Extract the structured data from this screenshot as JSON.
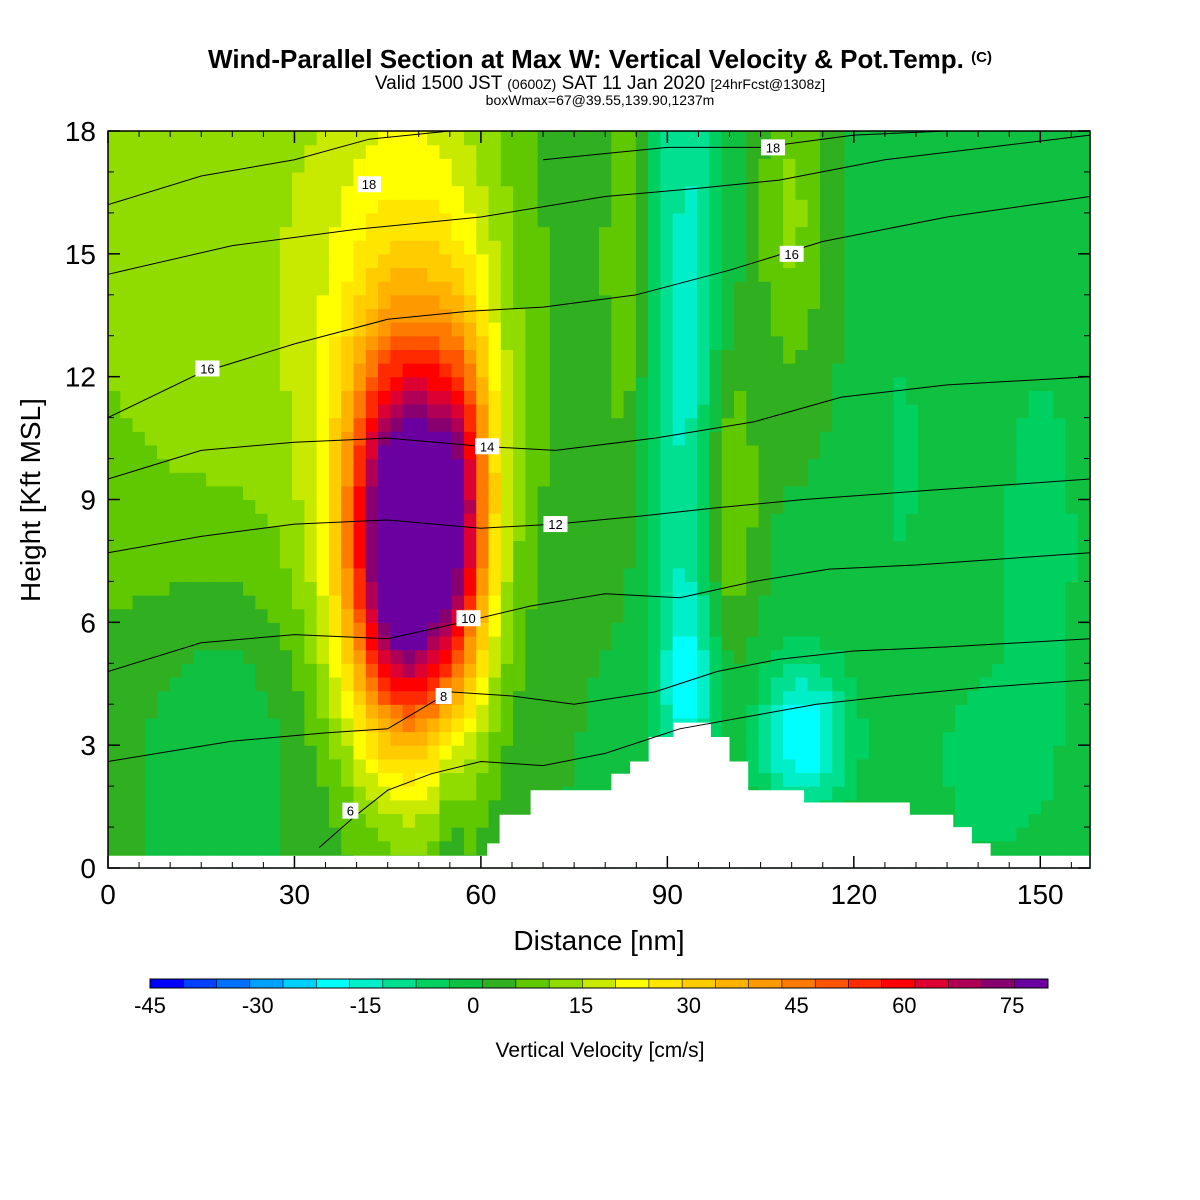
{
  "header": {
    "title": "Wind-Parallel Section at Max W: Vertical Velocity & Pot.Temp.",
    "copyright": "(C)",
    "valid_a": "Valid 1500 JST",
    "valid_zulu": "(0600Z)",
    "valid_b": "SAT 11 Jan 2020",
    "forecast": "[24hrFcst@1308z]",
    "box_info": "boxWmax=67@39.55,139.90,1237m"
  },
  "chart_data": {
    "type": "heatmap",
    "xlabel": "Distance [nm]",
    "ylabel": "Height [Kft MSL]",
    "xlim": [
      0,
      158
    ],
    "ylim": [
      0,
      18
    ],
    "x_ticks": [
      "0",
      "30",
      "60",
      "90",
      "120",
      "150"
    ],
    "y_ticks": [
      "0",
      "3",
      "6",
      "9",
      "12",
      "15",
      "18"
    ],
    "grid": false,
    "colorbar": {
      "label": "Vertical Velocity [cm/s]",
      "range": [
        -45,
        80
      ],
      "step": 5,
      "tick_labels": [
        "-45",
        "-30",
        "-15",
        "0",
        "15",
        "30",
        "45",
        "60",
        "75"
      ],
      "colors": [
        "#0000ff",
        "#0040ff",
        "#0070ff",
        "#00a0ff",
        "#00d0ff",
        "#00ffff",
        "#00eec8",
        "#00e090",
        "#00d060",
        "#10c040",
        "#30b020",
        "#60c800",
        "#90dc00",
        "#c8ea00",
        "#ffff00",
        "#ffe600",
        "#ffcc00",
        "#ffb300",
        "#ff9900",
        "#ff7a00",
        "#ff5500",
        "#ff2a00",
        "#ff0000",
        "#dd0033",
        "#b00055",
        "#880070",
        "#6a00a0"
      ]
    },
    "terrain_kft": [
      [
        0,
        0.3
      ],
      [
        61,
        0.3
      ],
      [
        61,
        0.6
      ],
      [
        63,
        0.6
      ],
      [
        63,
        1.3
      ],
      [
        68,
        1.3
      ],
      [
        68,
        1.9
      ],
      [
        81,
        1.9
      ],
      [
        81,
        2.3
      ],
      [
        84,
        2.3
      ],
      [
        84,
        2.6
      ],
      [
        87,
        2.6
      ],
      [
        87,
        3.2
      ],
      [
        91,
        3.2
      ],
      [
        91,
        3.55
      ],
      [
        97,
        3.55
      ],
      [
        97,
        3.2
      ],
      [
        100,
        3.2
      ],
      [
        100,
        2.6
      ],
      [
        103,
        2.6
      ],
      [
        103,
        1.9
      ],
      [
        112,
        1.9
      ],
      [
        112,
        1.6
      ],
      [
        129,
        1.6
      ],
      [
        129,
        1.3
      ],
      [
        136,
        1.3
      ],
      [
        136,
        1.0
      ],
      [
        139,
        1.0
      ],
      [
        139,
        0.6
      ],
      [
        142,
        0.6
      ],
      [
        142,
        0.3
      ],
      [
        158,
        0.3
      ]
    ],
    "w_features": [
      {
        "x": 48,
        "z": 7.8,
        "sx": 6.5,
        "sz": 3.2,
        "w": 88
      },
      {
        "x": 50,
        "z": 12.5,
        "sx": 12,
        "sz": 6.5,
        "w": 22
      },
      {
        "x": 57,
        "z": 9,
        "sx": 3.5,
        "sz": 3.0,
        "w": 32
      },
      {
        "x": 15,
        "z": 15,
        "sx": 25,
        "sz": 8,
        "w": 14
      },
      {
        "x": 18,
        "z": 3.5,
        "sx": 9,
        "sz": 2.5,
        "w": -8
      },
      {
        "x": 93,
        "z": 13,
        "sx": 4,
        "sz": 8,
        "w": -16
      },
      {
        "x": 112,
        "z": 3.2,
        "sx": 5,
        "sz": 1.3,
        "w": -24
      },
      {
        "x": 93,
        "z": 4.5,
        "sx": 3,
        "sz": 1.5,
        "w": -14
      },
      {
        "x": 100,
        "z": 9,
        "sx": 3,
        "sz": 2.5,
        "w": 14
      },
      {
        "x": 110,
        "z": 16,
        "sx": 4,
        "sz": 3,
        "w": 12
      },
      {
        "x": 83,
        "z": 15,
        "sx": 2.5,
        "sz": 4,
        "w": 10
      },
      {
        "x": 150,
        "z": 8,
        "sx": 4,
        "sz": 3,
        "w": -9
      },
      {
        "x": 142,
        "z": 2.5,
        "sx": 8,
        "sz": 2,
        "w": -6
      },
      {
        "x": 128,
        "z": 10,
        "sx": 3,
        "sz": 3,
        "w": -5
      },
      {
        "x": 55,
        "z": 1.5,
        "sx": 1.2,
        "sz": 1.5,
        "w": -6
      }
    ],
    "w_background": 4,
    "theta_contours": [
      {
        "label": "6",
        "pts": [
          [
            34,
            0.5
          ],
          [
            40,
            1.3
          ],
          [
            45,
            1.9
          ],
          [
            52,
            2.3
          ],
          [
            60,
            2.6
          ],
          [
            70,
            2.5
          ],
          [
            80,
            2.8
          ],
          [
            92,
            3.4
          ],
          [
            103,
            3.7
          ],
          [
            114,
            4.0
          ],
          [
            126,
            4.2
          ],
          [
            140,
            4.4
          ],
          [
            158,
            4.6
          ]
        ],
        "label_at": [
          39,
          1.4
        ]
      },
      {
        "label": "8",
        "pts": [
          [
            0,
            2.6
          ],
          [
            20,
            3.1
          ],
          [
            35,
            3.3
          ],
          [
            45,
            3.4
          ],
          [
            55,
            4.3
          ],
          [
            65,
            4.2
          ],
          [
            75,
            4.0
          ],
          [
            88,
            4.3
          ],
          [
            98,
            4.8
          ],
          [
            108,
            5.1
          ],
          [
            120,
            5.3
          ],
          [
            135,
            5.4
          ],
          [
            158,
            5.6
          ]
        ],
        "label_at": [
          54,
          4.2
        ]
      },
      {
        "label": "10",
        "pts": [
          [
            0,
            4.8
          ],
          [
            15,
            5.5
          ],
          [
            30,
            5.7
          ],
          [
            45,
            5.6
          ],
          [
            57,
            6.0
          ],
          [
            68,
            6.4
          ],
          [
            80,
            6.7
          ],
          [
            92,
            6.6
          ],
          [
            104,
            7.0
          ],
          [
            116,
            7.3
          ],
          [
            130,
            7.4
          ],
          [
            158,
            7.7
          ]
        ],
        "label_at": [
          58,
          6.1
        ]
      },
      {
        "label": "12",
        "pts": [
          [
            0,
            7.7
          ],
          [
            15,
            8.1
          ],
          [
            30,
            8.4
          ],
          [
            45,
            8.5
          ],
          [
            60,
            8.3
          ],
          [
            72,
            8.4
          ],
          [
            86,
            8.6
          ],
          [
            98,
            8.8
          ],
          [
            112,
            9.0
          ],
          [
            130,
            9.2
          ],
          [
            158,
            9.5
          ]
        ],
        "label_at": [
          72,
          8.4
        ]
      },
      {
        "label": "14",
        "pts": [
          [
            0,
            9.5
          ],
          [
            15,
            10.2
          ],
          [
            30,
            10.4
          ],
          [
            45,
            10.5
          ],
          [
            60,
            10.3
          ],
          [
            72,
            10.2
          ],
          [
            88,
            10.5
          ],
          [
            104,
            10.9
          ],
          [
            118,
            11.5
          ],
          [
            135,
            11.8
          ],
          [
            158,
            12.0
          ]
        ],
        "label_at": [
          61,
          10.3
        ]
      },
      {
        "label": "16",
        "pts": [
          [
            0,
            11.0
          ],
          [
            15,
            12.1
          ],
          [
            30,
            12.8
          ],
          [
            45,
            13.4
          ],
          [
            58,
            13.6
          ],
          [
            70,
            13.7
          ],
          [
            85,
            14.0
          ],
          [
            100,
            14.6
          ],
          [
            115,
            15.3
          ],
          [
            135,
            15.9
          ],
          [
            158,
            16.4
          ]
        ],
        "label_at": [
          16,
          12.2
        ]
      },
      {
        "label": "16",
        "pts": [
          [
            0,
            14.5
          ],
          [
            20,
            15.2
          ],
          [
            40,
            15.6
          ],
          [
            60,
            15.9
          ],
          [
            80,
            16.4
          ],
          [
            95,
            16.6
          ],
          [
            108,
            16.8
          ],
          [
            125,
            17.3
          ],
          [
            158,
            17.9
          ]
        ],
        "label_at": [
          110,
          15.0
        ]
      },
      {
        "label": "18",
        "pts": [
          [
            0,
            16.2
          ],
          [
            15,
            16.9
          ],
          [
            30,
            17.3
          ],
          [
            42,
            17.8
          ],
          [
            55,
            18.0
          ]
        ],
        "label_at": [
          42,
          16.7
        ]
      },
      {
        "label": "18",
        "pts": [
          [
            70,
            17.3
          ],
          [
            90,
            17.6
          ],
          [
            105,
            17.6
          ],
          [
            120,
            17.9
          ],
          [
            135,
            18.0
          ]
        ],
        "label_at": [
          107,
          17.6
        ]
      }
    ]
  }
}
